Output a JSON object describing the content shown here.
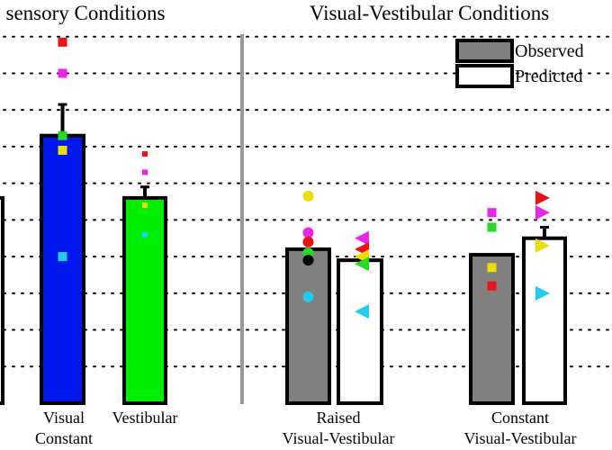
{
  "chart_data": {
    "type": "bar",
    "ylim": [
      0,
      11
    ],
    "grid": true,
    "legend_placement": "top-right",
    "panels": [
      {
        "title": "sensory Conditions",
        "categories": [
          {
            "lines": [
              "Visual",
              "Constant"
            ]
          },
          {
            "lines": [
              "Vestibular"
            ]
          }
        ]
      },
      {
        "title": "Visual-Vestibular Conditions",
        "categories": [
          {
            "lines": [
              "Raised",
              "Visual-Vestibular"
            ]
          },
          {
            "lines": [
              "Constant",
              "Visual-Vestibular"
            ]
          }
        ]
      }
    ],
    "legend": [
      {
        "label": "Observed",
        "fill": "#808080"
      },
      {
        "label": "Predicted",
        "fill": "#ffffff"
      }
    ],
    "bars": [
      {
        "panel": 0,
        "category": 0,
        "kind": "observed",
        "value": 7.3,
        "error": 0.85,
        "fill": "#0018ee",
        "lead": true
      },
      {
        "panel": 0,
        "category": 1,
        "kind": "observed",
        "value": 5.6,
        "error": 0.3,
        "fill": "#00ee00"
      },
      {
        "panel": 1,
        "category": 0,
        "kind": "observed",
        "value": 4.2,
        "error": 0.0,
        "fill": "#808080"
      },
      {
        "panel": 1,
        "category": 0,
        "kind": "predicted",
        "value": 3.9,
        "error": 0.0,
        "fill": "#ffffff"
      },
      {
        "panel": 1,
        "category": 1,
        "kind": "observed",
        "value": 4.05,
        "error": 0.0,
        "fill": "#808080"
      },
      {
        "panel": 1,
        "category": 1,
        "kind": "predicted",
        "value": 4.5,
        "error": 0.3,
        "fill": "#ffffff"
      }
    ],
    "individual_points": [
      {
        "bar": 0,
        "shape": "square",
        "color": "#ee1111",
        "y": 9.85,
        "size": 10
      },
      {
        "bar": 0,
        "shape": "square",
        "color": "#ee22ee",
        "y": 9.0,
        "size": 10
      },
      {
        "bar": 0,
        "shape": "square",
        "color": "#22dd22",
        "y": 7.3,
        "size": 10
      },
      {
        "bar": 0,
        "shape": "square",
        "color": "#eedd00",
        "y": 6.9,
        "size": 10
      },
      {
        "bar": 0,
        "shape": "square",
        "color": "#22ccee",
        "y": 4.0,
        "size": 10
      },
      {
        "bar": 1,
        "shape": "square",
        "color": "#ee1111",
        "y": 6.8,
        "size": 6
      },
      {
        "bar": 1,
        "shape": "square",
        "color": "#ee22ee",
        "y": 6.3,
        "size": 6
      },
      {
        "bar": 1,
        "shape": "square",
        "color": "#eedd00",
        "y": 5.4,
        "size": 6
      },
      {
        "bar": 1,
        "shape": "square",
        "color": "#22ccee",
        "y": 4.6,
        "size": 6
      },
      {
        "bar": 2,
        "shape": "circle",
        "color": "#eedd00",
        "y": 5.65
      },
      {
        "bar": 2,
        "shape": "circle",
        "color": "#ee22ee",
        "y": 4.65
      },
      {
        "bar": 2,
        "shape": "circle",
        "color": "#ee1111",
        "y": 4.4
      },
      {
        "bar": 2,
        "shape": "circle",
        "color": "#22dd22",
        "y": 4.1
      },
      {
        "bar": 2,
        "shape": "circle",
        "color": "#000000",
        "y": 3.9
      },
      {
        "bar": 2,
        "shape": "circle",
        "color": "#22ccee",
        "y": 2.9
      },
      {
        "bar": 3,
        "shape": "triangle-left",
        "color": "#ee22ee",
        "y": 4.5
      },
      {
        "bar": 3,
        "shape": "triangle-left",
        "color": "#ee1111",
        "y": 4.2
      },
      {
        "bar": 3,
        "shape": "triangle-left",
        "color": "#eedd00",
        "y": 4.0
      },
      {
        "bar": 3,
        "shape": "triangle-left",
        "color": "#22dd22",
        "y": 3.8
      },
      {
        "bar": 3,
        "shape": "triangle-left",
        "color": "#22ccee",
        "y": 2.5
      },
      {
        "bar": 4,
        "shape": "square",
        "color": "#ee22ee",
        "y": 5.2,
        "size": 10
      },
      {
        "bar": 4,
        "shape": "square",
        "color": "#22dd22",
        "y": 4.8,
        "size": 10
      },
      {
        "bar": 4,
        "shape": "square",
        "color": "#eedd00",
        "y": 3.7,
        "size": 10
      },
      {
        "bar": 4,
        "shape": "square",
        "color": "#ee1111",
        "y": 3.2,
        "size": 10
      },
      {
        "bar": 5,
        "shape": "triangle-right",
        "color": "#ee1111",
        "y": 5.6
      },
      {
        "bar": 5,
        "shape": "triangle-right",
        "color": "#ee22ee",
        "y": 5.2
      },
      {
        "bar": 5,
        "shape": "triangle-right",
        "color": "#eedd00",
        "y": 4.3
      },
      {
        "bar": 5,
        "shape": "triangle-right",
        "color": "#22ccee",
        "y": 3.0
      }
    ]
  }
}
